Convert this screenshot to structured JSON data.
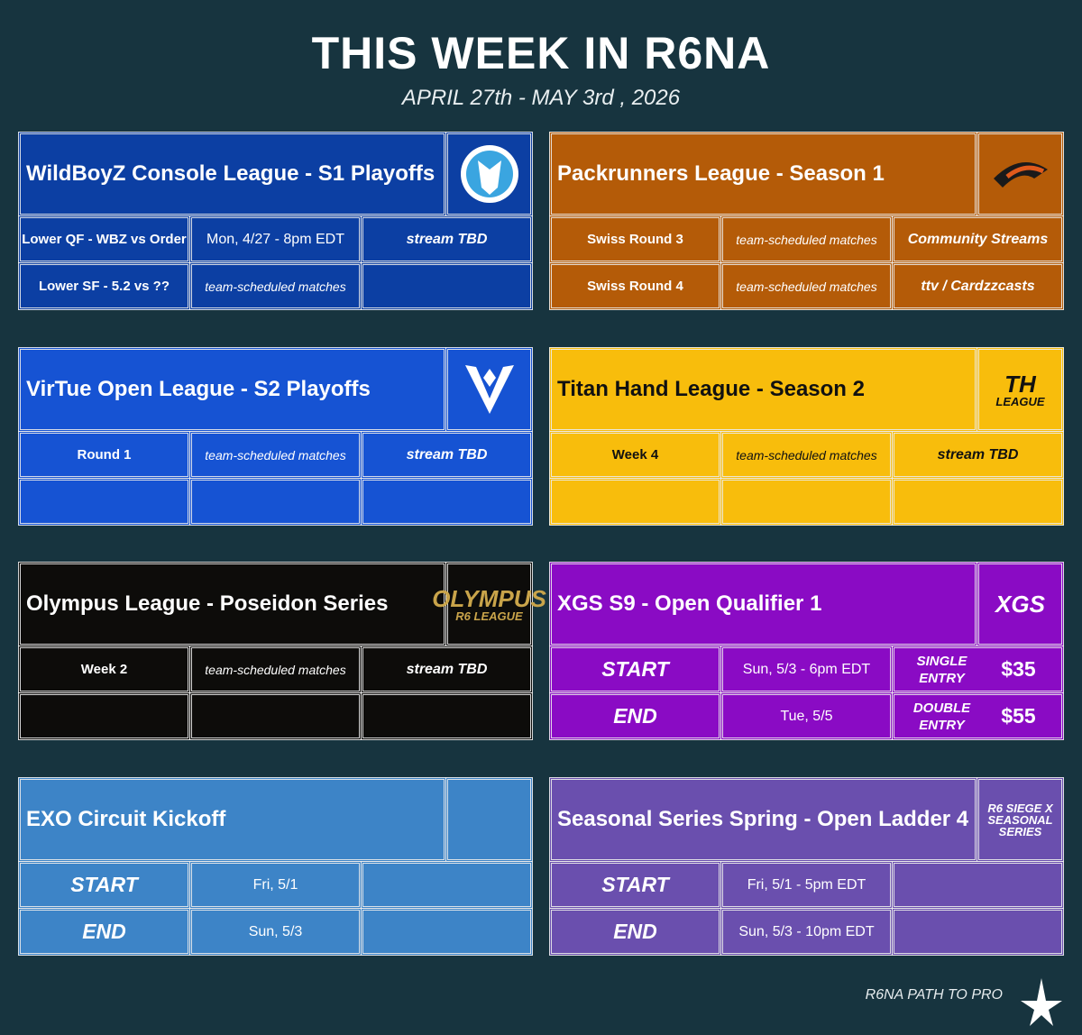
{
  "header": {
    "title": "THIS WEEK IN R6NA",
    "subtitle": "APRIL 27th - MAY 3rd , 2026"
  },
  "cards": [
    {
      "title": "WildBoyZ Console League - S1 Playoffs",
      "color": "#0c3fa3",
      "rows": [
        [
          "Lower QF - WBZ vs Order",
          "Mon, 4/27 - 8pm EDT",
          "stream TBD"
        ],
        [
          "Lower SF - 5.2 vs ??",
          "team-scheduled matches",
          null
        ]
      ]
    },
    {
      "title": "Packrunners League - Season 1",
      "color": "#b45b08",
      "rows": [
        [
          "Swiss Round 3",
          "team-scheduled matches",
          "Community Streams"
        ],
        [
          "Swiss Round 4",
          "team-scheduled matches",
          "ttv / Cardzzcasts"
        ]
      ]
    },
    {
      "title": "VirTue Open League - S2 Playoffs",
      "color": "#1653d3",
      "rows": [
        [
          "Round 1",
          "team-scheduled matches",
          "stream TBD"
        ],
        [
          null,
          null,
          null
        ]
      ]
    },
    {
      "title": "Titan Hand League - Season 2",
      "color": "#f8bd0c",
      "logo": [
        "TH",
        "LEAGUE"
      ],
      "rows": [
        [
          "Week 4",
          "team-scheduled matches",
          "stream TBD"
        ],
        [
          null,
          null,
          null
        ]
      ]
    },
    {
      "title": "Olympus League - Poseidon Series",
      "color": "#0d0c0a",
      "logo": [
        "OLYMPUS",
        "R6 LEAGUE"
      ],
      "rows": [
        [
          "Week 2",
          "team-scheduled matches",
          "stream TBD"
        ],
        [
          null,
          null,
          null
        ]
      ]
    },
    {
      "title": "XGS S9 - Open Qualifier 1",
      "color": "#8a0bc4",
      "logo": [
        "XGS"
      ],
      "rows": [
        [
          "START",
          "Sun, 5/3 - 6pm EDT",
          {
            "label": "SINGLE ENTRY",
            "price": "$35"
          }
        ],
        [
          "END",
          "Tue, 5/5",
          {
            "label": "DOUBLE ENTRY",
            "price": "$55"
          }
        ]
      ]
    },
    {
      "title": "EXO Circuit Kickoff",
      "color": "#3d84c7",
      "rows": [
        [
          "START",
          "Fri, 5/1",
          null
        ],
        [
          "END",
          "Sun, 5/3",
          null
        ]
      ]
    },
    {
      "title": "Seasonal Series Spring - Open Ladder 4",
      "color": "#6a4fae",
      "logo": [
        "R6 SIEGE X",
        "SEASONAL",
        "SERIES"
      ],
      "rows": [
        [
          "START",
          "Fri, 5/1 - 5pm EDT",
          null
        ],
        [
          "END",
          "Sun, 5/3 - 10pm EDT",
          null
        ]
      ]
    }
  ],
  "footer": "R6NA PATH TO PRO"
}
